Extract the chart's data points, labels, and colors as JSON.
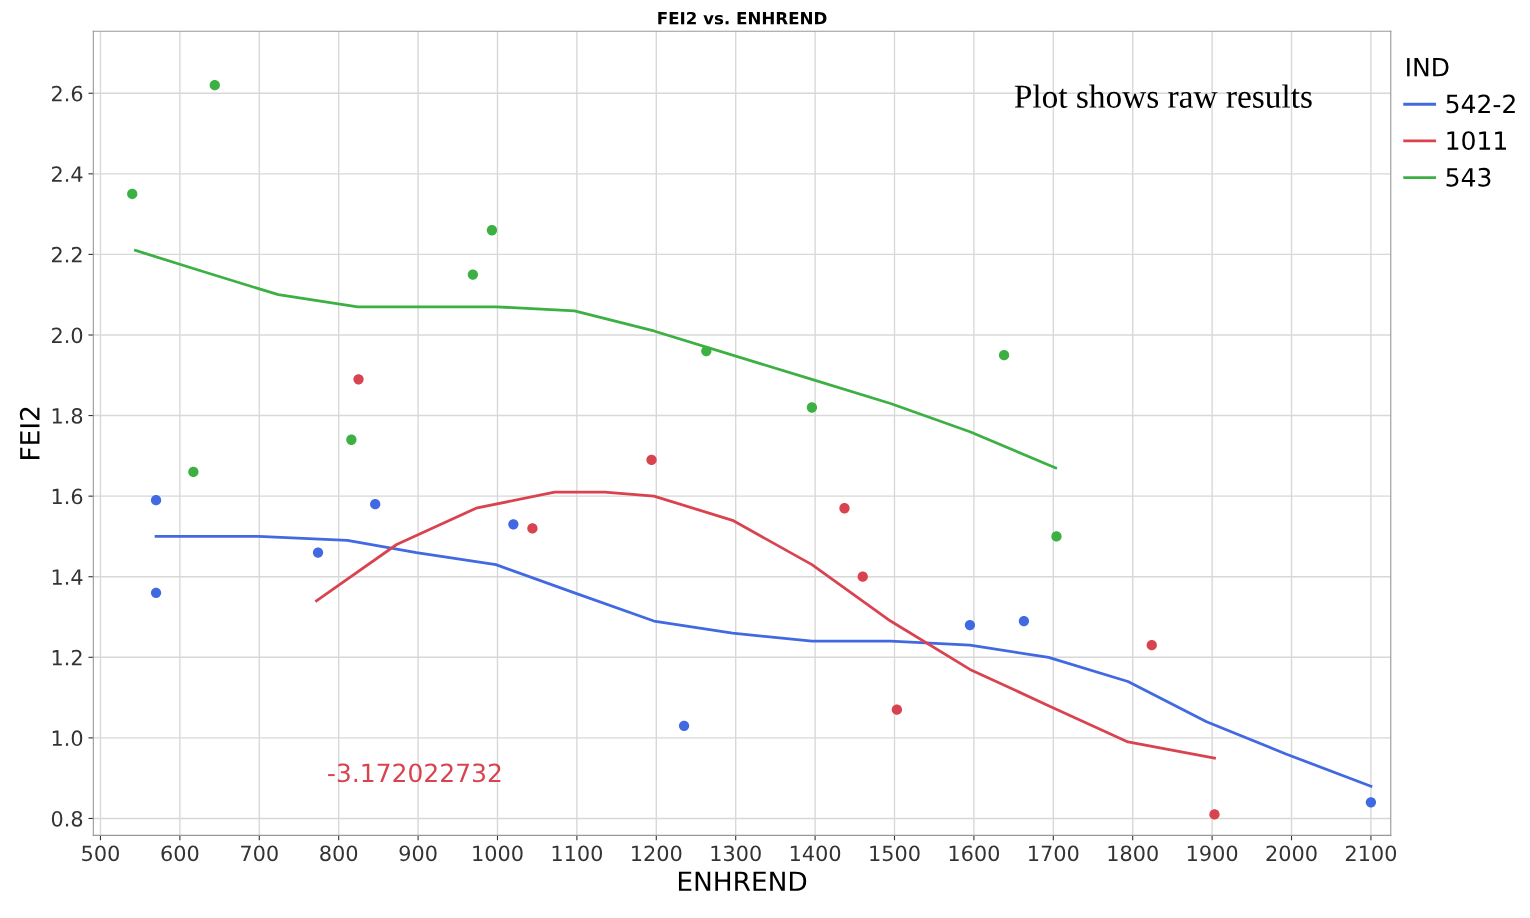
{
  "chart_data": {
    "type": "scatter",
    "title": "FEI2 vs. ENHREND",
    "xlabel": "ENHREND",
    "ylabel": "FEI2",
    "legend_title": "IND",
    "xlim": [
      491,
      2125
    ],
    "ylim": [
      0.758,
      2.754
    ],
    "xticks": [
      500,
      600,
      700,
      800,
      900,
      1000,
      1100,
      1200,
      1300,
      1400,
      1500,
      1600,
      1700,
      1800,
      1900,
      2000,
      2100
    ],
    "yticks": [
      0.8,
      {
        "value": 1,
        "label": "1.0"
      },
      1.2,
      1.4,
      1.6,
      1.8,
      {
        "value": 2,
        "label": "2.0"
      },
      2.2,
      2.4,
      2.6
    ],
    "grid": true,
    "legend": "right",
    "marker": "circle",
    "annotations": [
      "Plot shows raw results",
      "-3.172022732"
    ],
    "series": [
      {
        "color": "#4169e1",
        "x": [
          570,
          570,
          774,
          846,
          1020,
          1235,
          1595,
          1663,
          2100
        ],
        "values": [
          1.59,
          1.36,
          1.46,
          1.58,
          1.53,
          1.03,
          1.28,
          1.29,
          0.84
        ]
      },
      {
        "color": "#d9434f",
        "x": [
          825,
          1044,
          1194,
          1437,
          1460,
          1503,
          1824,
          1903
        ],
        "values": [
          1.89,
          1.52,
          1.69,
          1.57,
          1.4,
          1.07,
          1.23,
          0.81
        ]
      },
      {
        "color": "#3cb043",
        "x": [
          540,
          644,
          617,
          816,
          969,
          993,
          1263,
          1396,
          1638,
          1704
        ],
        "values": [
          2.35,
          2.62,
          1.66,
          1.74,
          2.15,
          2.26,
          1.96,
          1.82,
          1.95,
          1.5
        ]
      },
      {
        "type": "line",
        "marker": "none",
        "name": "542-2",
        "color": "#4169e1",
        "x": [
          570,
          699,
          811,
          898,
          998,
          1097,
          1197,
          1296,
          1396,
          1495,
          1595,
          1694,
          1794,
          1893,
          1993,
          2100
        ],
        "values": [
          1.5,
          1.5,
          1.49,
          1.46,
          1.43,
          1.36,
          1.29,
          1.26,
          1.24,
          1.24,
          1.23,
          1.2,
          1.14,
          1.04,
          0.96,
          0.88
        ]
      },
      {
        "type": "line",
        "marker": "none",
        "name": "1011",
        "color": "#d9434f",
        "x": [
          772,
          873,
          973,
          1072,
          1135,
          1197,
          1296,
          1396,
          1495,
          1595,
          1694,
          1794,
          1903
        ],
        "values": [
          1.34,
          1.48,
          1.57,
          1.61,
          1.61,
          1.6,
          1.54,
          1.43,
          1.29,
          1.17,
          1.08,
          0.99,
          0.95
        ]
      },
      {
        "type": "line",
        "marker": "none",
        "name": "543",
        "color": "#3cb043",
        "x": [
          544,
          625,
          724,
          824,
          898,
          998,
          1097,
          1197,
          1296,
          1396,
          1495,
          1595,
          1703
        ],
        "values": [
          2.21,
          2.16,
          2.1,
          2.07,
          2.07,
          2.07,
          2.06,
          2.01,
          1.95,
          1.89,
          1.83,
          1.76,
          1.67
        ]
      }
    ]
  }
}
